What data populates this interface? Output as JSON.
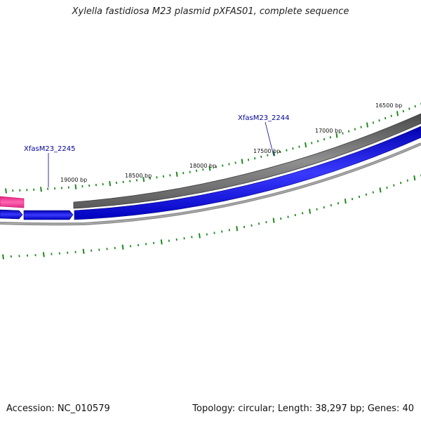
{
  "title": "Xylella fastidiosa M23 plasmid pXFAS01, complete sequence",
  "accession_text": "Accession: NC_010579",
  "summary_text": "Topology: circular; Length: 38,297 bp; Genes: 40",
  "ticks": [
    {
      "label": "16500 bp",
      "bp": 16500
    },
    {
      "label": "17000 bp",
      "bp": 17000
    },
    {
      "label": "17500 bp",
      "bp": 17500
    },
    {
      "label": "18000 bp",
      "bp": 18000
    },
    {
      "label": "18500 bp",
      "bp": 18500
    },
    {
      "label": "19000 bp",
      "bp": 19000
    }
  ],
  "gene_labels": [
    {
      "label": "XfasM23_2244"
    },
    {
      "label": "XfasM23_2245"
    }
  ],
  "colors": {
    "tick": "#1f8a1f",
    "gray_feature": "#6b6b6b",
    "blue_feature": "#0a0ae6",
    "pink_feature": "#ff3399",
    "backbone": "#8a8a8a",
    "gene_label": "#00009a"
  }
}
